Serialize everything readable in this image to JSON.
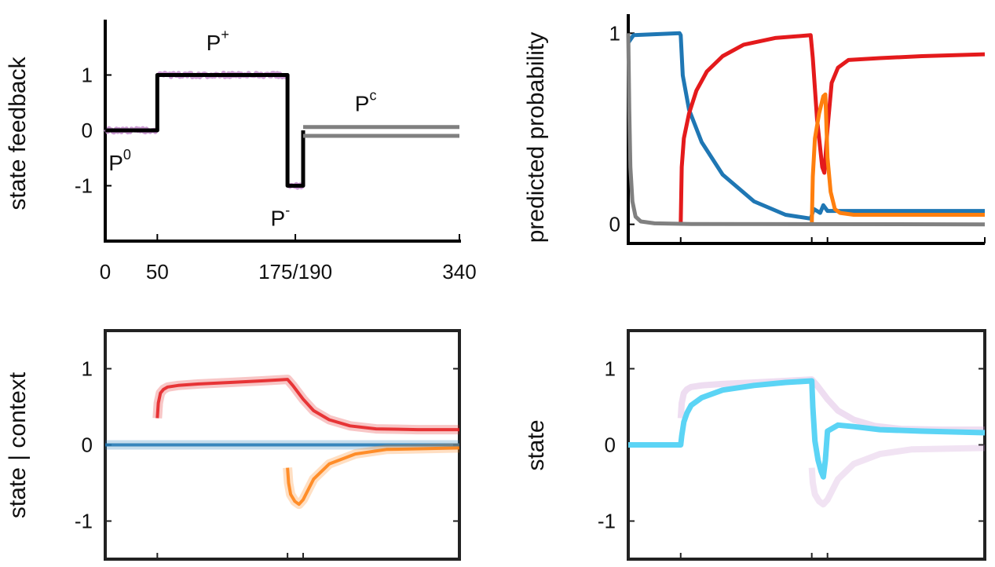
{
  "chart_data": [
    {
      "id": "state-feedback",
      "type": "line",
      "ylabel": "state feedback",
      "xlabel": "",
      "xlim": [
        0,
        340
      ],
      "ylim": [
        -2,
        2
      ],
      "xticks": [
        {
          "value": 0,
          "label": "0"
        },
        {
          "value": 50,
          "label": "50"
        },
        {
          "value": 182.5,
          "label": "175/190"
        },
        {
          "value": 340,
          "label": "340"
        }
      ],
      "yticks": [
        {
          "value": 1,
          "label": "1"
        },
        {
          "value": 0,
          "label": "0"
        },
        {
          "value": -1,
          "label": "-1"
        }
      ],
      "phases": [
        {
          "name": "P",
          "sup": "0",
          "x": 14,
          "y": -0.72
        },
        {
          "name": "P",
          "sup": "+",
          "x": 108,
          "y": 1.45
        },
        {
          "name": "P",
          "sup": "-",
          "x": 168,
          "y": -1.72
        },
        {
          "name": "P",
          "sup": "c",
          "x": 250,
          "y": 0.35
        }
      ],
      "series": [
        {
          "role": "feedback-step",
          "color": "#000000",
          "x": [
            0,
            50,
            50,
            175,
            175,
            190,
            190
          ],
          "y": [
            0,
            0,
            1,
            1,
            -1,
            -1,
            0
          ]
        },
        {
          "role": "noisy-observations",
          "color": "#c690cf",
          "segments": [
            [
              0,
              50,
              0
            ],
            [
              50,
              175,
              1
            ],
            [
              175,
              190,
              -1
            ]
          ]
        },
        {
          "role": "clamp-band",
          "color": "#808080",
          "x": [
            190,
            340
          ],
          "y_top": 0.06,
          "y_bottom": -0.1
        }
      ]
    },
    {
      "id": "predicted-probability",
      "type": "line",
      "ylabel": "predicted probability",
      "xlabel": "",
      "xlim": [
        0,
        340
      ],
      "ylim": [
        -0.1,
        1.1
      ],
      "xticks": [
        50,
        175,
        190,
        340
      ],
      "yticks": [
        {
          "value": 1,
          "label": "1"
        },
        {
          "value": 0,
          "label": "0"
        }
      ],
      "series": [
        {
          "color": "#1f77b4",
          "x": [
            0,
            5,
            49,
            50,
            52,
            58,
            70,
            90,
            120,
            150,
            174,
            177,
            180,
            183,
            186,
            190,
            200,
            240,
            340
          ],
          "y": [
            0.95,
            0.99,
            1.0,
            0.99,
            0.78,
            0.6,
            0.43,
            0.26,
            0.12,
            0.05,
            0.03,
            0.08,
            0.07,
            0.06,
            0.1,
            0.07,
            0.07,
            0.07,
            0.07
          ]
        },
        {
          "color": "#e41a1c",
          "x": [
            50,
            51,
            53,
            58,
            65,
            75,
            90,
            110,
            140,
            174,
            176,
            180,
            185,
            187,
            190,
            194,
            200,
            210,
            240,
            280,
            340
          ],
          "y": [
            0.0,
            0.3,
            0.45,
            0.58,
            0.7,
            0.8,
            0.88,
            0.94,
            0.975,
            0.99,
            0.87,
            0.55,
            0.3,
            0.27,
            0.5,
            0.74,
            0.82,
            0.86,
            0.87,
            0.88,
            0.89
          ]
        },
        {
          "color": "#ff7f0e",
          "x": [
            175,
            176,
            178,
            182,
            186,
            188,
            190,
            193,
            197,
            202,
            215,
            260,
            340
          ],
          "y": [
            0.0,
            0.25,
            0.45,
            0.58,
            0.67,
            0.68,
            0.35,
            0.17,
            0.08,
            0.06,
            0.05,
            0.05,
            0.05
          ]
        },
        {
          "color": "#808080",
          "x": [
            0,
            1,
            2,
            4,
            7,
            12,
            25,
            60,
            340
          ],
          "y": [
            1.0,
            0.6,
            0.3,
            0.12,
            0.04,
            0.015,
            0.005,
            0.002,
            0.0
          ]
        }
      ]
    },
    {
      "id": "state-given-context",
      "type": "line",
      "ylabel": "state | context",
      "xlabel": "",
      "xlim": [
        0,
        340
      ],
      "ylim": [
        -1.5,
        1.5
      ],
      "xticks": [
        50,
        175,
        190,
        340
      ],
      "yticks": [
        {
          "value": 1,
          "label": "1"
        },
        {
          "value": 0,
          "label": "0"
        },
        {
          "value": -1,
          "label": "-1"
        }
      ],
      "series": [
        {
          "color": "#e41a1c",
          "x": [
            50,
            51,
            53,
            56,
            60,
            70,
            90,
            120,
            150,
            175,
            180,
            190,
            200,
            215,
            235,
            260,
            300,
            340
          ],
          "y": [
            0.35,
            0.55,
            0.68,
            0.73,
            0.76,
            0.78,
            0.8,
            0.82,
            0.84,
            0.86,
            0.78,
            0.6,
            0.45,
            0.33,
            0.25,
            0.21,
            0.2,
            0.2
          ]
        },
        {
          "color": "#1f77b4",
          "x": [
            0,
            50,
            100,
            190,
            340
          ],
          "y": [
            0.0,
            0.0,
            0.0,
            0.0,
            0.0
          ]
        },
        {
          "color": "#ff7f0e",
          "x": [
            175,
            176,
            178,
            182,
            186,
            190,
            200,
            215,
            240,
            270,
            340
          ],
          "y": [
            -0.3,
            -0.5,
            -0.65,
            -0.74,
            -0.78,
            -0.72,
            -0.45,
            -0.25,
            -0.12,
            -0.06,
            -0.04
          ]
        }
      ]
    },
    {
      "id": "state",
      "type": "line",
      "ylabel": "state",
      "xlabel": "",
      "xlim": [
        0,
        340
      ],
      "ylim": [
        -1.5,
        1.5
      ],
      "xticks": [
        50,
        175,
        190,
        340
      ],
      "yticks": [
        {
          "value": 1,
          "label": "1"
        },
        {
          "value": 0,
          "label": "0"
        },
        {
          "value": -1,
          "label": "-1"
        }
      ],
      "series": [
        {
          "color": "#5bd4f5",
          "x": [
            0,
            50,
            51,
            53,
            56,
            60,
            70,
            90,
            120,
            150,
            175,
            176,
            178,
            181,
            184,
            186,
            188,
            190,
            200,
            215,
            240,
            280,
            340
          ],
          "y": [
            0.0,
            0.0,
            0.12,
            0.3,
            0.42,
            0.52,
            0.62,
            0.72,
            0.78,
            0.82,
            0.84,
            0.5,
            0.05,
            -0.2,
            -0.35,
            -0.42,
            -0.2,
            0.18,
            0.26,
            0.24,
            0.2,
            0.18,
            0.16
          ]
        },
        {
          "role": "context-weighted-red",
          "color": "#c690cf",
          "x": [
            50,
            51,
            53,
            56,
            60,
            70,
            90,
            120,
            150,
            175,
            180,
            190,
            200,
            215,
            235,
            260,
            300,
            340
          ],
          "y": [
            0.35,
            0.55,
            0.68,
            0.73,
            0.76,
            0.78,
            0.8,
            0.82,
            0.84,
            0.86,
            0.78,
            0.6,
            0.45,
            0.33,
            0.25,
            0.21,
            0.2,
            0.2
          ]
        },
        {
          "role": "context-weighted-orange",
          "color": "#c690cf",
          "x": [
            175,
            176,
            178,
            182,
            186,
            190,
            200,
            215,
            240,
            270,
            340
          ],
          "y": [
            -0.3,
            -0.5,
            -0.65,
            -0.74,
            -0.78,
            -0.72,
            -0.45,
            -0.25,
            -0.12,
            -0.06,
            -0.04
          ]
        }
      ]
    }
  ]
}
